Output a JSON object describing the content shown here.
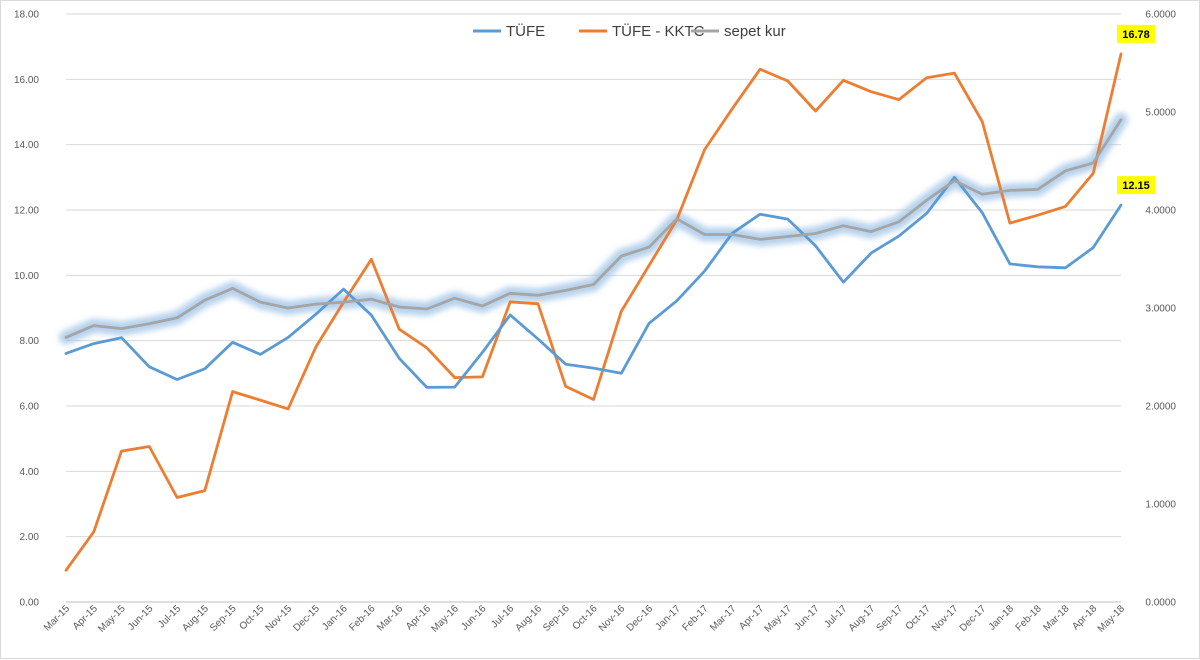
{
  "chart_data": {
    "type": "line",
    "title": "",
    "xlabel": "",
    "ylabel": "",
    "ylim": [
      0,
      18
    ],
    "y2lim": [
      0,
      6
    ],
    "y_ticks": [
      "0.00",
      "2.00",
      "4.00",
      "6.00",
      "8.00",
      "10.00",
      "12.00",
      "14.00",
      "16.00",
      "18.00"
    ],
    "y2_ticks": [
      "0.0000",
      "1.0000",
      "2.0000",
      "3.0000",
      "4.0000",
      "5.0000",
      "6.0000"
    ],
    "grid": true,
    "legend_position": "top",
    "categories": [
      "Mar-15",
      "Apr-15",
      "May-15",
      "Jun-15",
      "Jul-15",
      "Aug-15",
      "Sep-15",
      "Oct-15",
      "Nov-15",
      "Dec-15",
      "Jan-16",
      "Feb-16",
      "Mar-16",
      "Apr-16",
      "May-16",
      "Jun-16",
      "Jul-16",
      "Aug-16",
      "Sep-16",
      "Oct-16",
      "Nov-16",
      "Dec-16",
      "Jan-17",
      "Feb-17",
      "Mar-17",
      "Apr-17",
      "May-17",
      "Jun-17",
      "Jul-17",
      "Aug-17",
      "Sep-17",
      "Oct-17",
      "Nov-17",
      "Dec-17",
      "Jan-18",
      "Feb-18",
      "Mar-18",
      "Apr-18",
      "May-18"
    ],
    "series": [
      {
        "name": "TÜFE",
        "axis": "left",
        "color": "#5b9bd5",
        "values": [
          7.61,
          7.91,
          8.09,
          7.2,
          6.81,
          7.14,
          7.95,
          7.58,
          8.1,
          8.81,
          9.58,
          8.78,
          7.46,
          6.57,
          6.58,
          7.64,
          8.79,
          8.05,
          7.28,
          7.16,
          7.0,
          8.53,
          9.22,
          10.13,
          11.29,
          11.87,
          11.72,
          10.9,
          9.79,
          10.68,
          11.2,
          11.9,
          13.0,
          11.92,
          10.35,
          10.26,
          10.23,
          10.85,
          12.15
        ]
      },
      {
        "name": "TÜFE - KKTC",
        "axis": "left",
        "color": "#ed7d31",
        "values": [
          0.97,
          2.15,
          4.62,
          4.76,
          3.2,
          3.41,
          6.44,
          6.18,
          5.91,
          7.81,
          9.18,
          10.49,
          8.35,
          7.78,
          6.87,
          6.89,
          9.19,
          9.13,
          6.6,
          6.2,
          8.9,
          10.3,
          11.7,
          13.85,
          15.1,
          16.31,
          15.95,
          15.03,
          15.97,
          15.62,
          15.38,
          16.05,
          16.19,
          14.71,
          11.6,
          11.84,
          12.11,
          13.12,
          16.78
        ]
      },
      {
        "name": "sepet kur",
        "axis": "right",
        "color": "#a5a5a5",
        "glow": true,
        "values": [
          2.7,
          2.82,
          2.79,
          2.84,
          2.9,
          3.08,
          3.2,
          3.06,
          3.0,
          3.04,
          3.06,
          3.09,
          3.01,
          2.99,
          3.1,
          3.02,
          3.15,
          3.13,
          3.18,
          3.24,
          3.53,
          3.62,
          3.91,
          3.75,
          3.75,
          3.7,
          3.73,
          3.76,
          3.84,
          3.78,
          3.88,
          4.1,
          4.3,
          4.16,
          4.2,
          4.21,
          4.4,
          4.48,
          4.92
        ]
      }
    ],
    "data_labels": [
      {
        "series": "TÜFE - KKTC",
        "index": 38,
        "text": "16.78"
      },
      {
        "series": "TÜFE",
        "index": 38,
        "text": "12.15"
      }
    ]
  }
}
